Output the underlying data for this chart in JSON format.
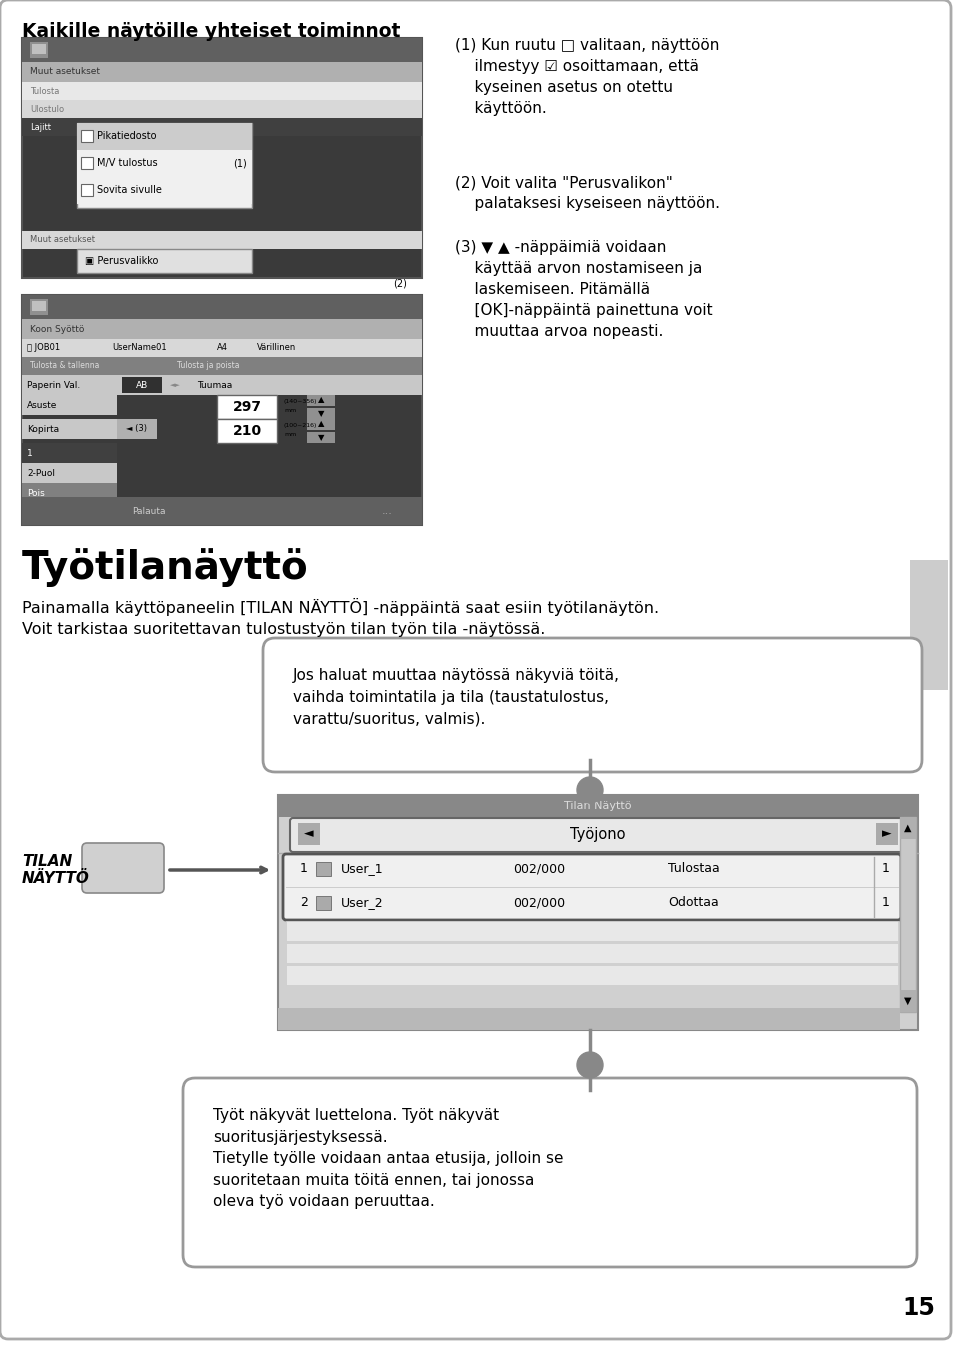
{
  "bg_color": "#ffffff",
  "title_top": "Kaikille näytöille yhteiset toiminnot",
  "section_title": "Työtilanäyttö",
  "section_subtitle1": "Painamalla käyttöpaneelin [TILAN NÄYTTÖ] -näppäintä saat esiin työtilanäytön.",
  "section_subtitle2": "Voit tarkistaa suoritettavan tulostustyön tilan työn tila -näytössä.",
  "callout1_text": "Jos haluat muuttaa näytössä näkyviä töitä,\nvaihda toimintatila ja tila (taustatulostus,\nvarattu/suoritus, valmis).",
  "callout2_text": "Työt näkyvät luettelona. Työt näkyvät\nsuoritusjärjestyksessä.\nTietylle työlle voidaan antaa etusija, jolloin se\nsuoritetaan muita töitä ennen, tai jonossa\noleva työ voidaan peruuttaa.",
  "text1": "(1) Kun ruutu □ valitaan, näyttöön\n    ilmestyy ☑ osoittamaan, että\n    kyseinen asetus on otettu\n    käyttöön.",
  "text2": "(2) Voit valita \"Perusvalikon\"\n    palataksesi kyseiseen näyttöön.",
  "text3": "(3) ▼ ▲ -näppäimiä voidaan\n    käyttää arvon nostamiseen ja\n    laskemiseen. Pitämällä\n    [OK]-näppäintä painettuna voit\n    muuttaa arvoa nopeasti.",
  "tilan_label": "TILAN\nNÄYTTÖ",
  "tyojono_label": "Työjono",
  "page_number": "15"
}
